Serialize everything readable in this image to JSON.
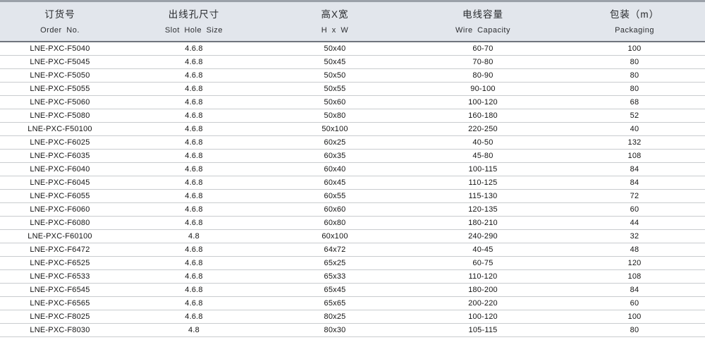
{
  "table": {
    "columns": [
      {
        "key": "order-no",
        "zh": "订货号",
        "en": "Order No."
      },
      {
        "key": "slot-hole-size",
        "zh": "出线孔尺寸",
        "en": "Slot Hole Size"
      },
      {
        "key": "h-x-w",
        "zh": "高X宽",
        "en": "H x W"
      },
      {
        "key": "wire-capacity",
        "zh": "电线容量",
        "en": "Wire Capacity"
      },
      {
        "key": "packaging",
        "zh": "包装（m）",
        "en": "Packaging"
      }
    ],
    "rows": [
      [
        "LNE-PXC-F5040",
        "4.6.8",
        "50x40",
        "60-70",
        "100"
      ],
      [
        "LNE-PXC-F5045",
        "4.6.8",
        "50x45",
        "70-80",
        "80"
      ],
      [
        "LNE-PXC-F5050",
        "4.6.8",
        "50x50",
        "80-90",
        "80"
      ],
      [
        "LNE-PXC-F5055",
        "4.6.8",
        "50x55",
        "90-100",
        "80"
      ],
      [
        "LNE-PXC-F5060",
        "4.6.8",
        "50x60",
        "100-120",
        "68"
      ],
      [
        "LNE-PXC-F5080",
        "4.6.8",
        "50x80",
        "160-180",
        "52"
      ],
      [
        "LNE-PXC-F50100",
        "4.6.8",
        "50x100",
        "220-250",
        "40"
      ],
      [
        "LNE-PXC-F6025",
        "4.6.8",
        "60x25",
        "40-50",
        "132"
      ],
      [
        "LNE-PXC-F6035",
        "4.6.8",
        "60x35",
        "45-80",
        "108"
      ],
      [
        "LNE-PXC-F6040",
        "4.6.8",
        "60x40",
        "100-115",
        "84"
      ],
      [
        "LNE-PXC-F6045",
        "4.6.8",
        "60x45",
        "110-125",
        "84"
      ],
      [
        "LNE-PXC-F6055",
        "4.6.8",
        "60x55",
        "115-130",
        "72"
      ],
      [
        "LNE-PXC-F6060",
        "4.6.8",
        "60x60",
        "120-135",
        "60"
      ],
      [
        "LNE-PXC-F6080",
        "4.6.8",
        "60x80",
        "180-210",
        "44"
      ],
      [
        "LNE-PXC-F60100",
        "4.8",
        "60x100",
        "240-290",
        "32"
      ],
      [
        "LNE-PXC-F6472",
        "4.6.8",
        "64x72",
        "40-45",
        "48"
      ],
      [
        "LNE-PXC-F6525",
        "4.6.8",
        "65x25",
        "60-75",
        "120"
      ],
      [
        "LNE-PXC-F6533",
        "4.6.8",
        "65x33",
        "110-120",
        "108"
      ],
      [
        "LNE-PXC-F6545",
        "4.6.8",
        "65x45",
        "180-200",
        "84"
      ],
      [
        "LNE-PXC-F6565",
        "4.6.8",
        "65x65",
        "200-220",
        "60"
      ],
      [
        "LNE-PXC-F8025",
        "4.6.8",
        "80x25",
        "100-120",
        "100"
      ],
      [
        "LNE-PXC-F8030",
        "4.8",
        "80x30",
        "105-115",
        "80"
      ]
    ]
  },
  "colors": {
    "header_bg": "#e2e6ec",
    "top_line": "#9ba1a9",
    "header_border": "#70757d",
    "row_border": "#c9cccf",
    "text": "#1f1f1f"
  }
}
